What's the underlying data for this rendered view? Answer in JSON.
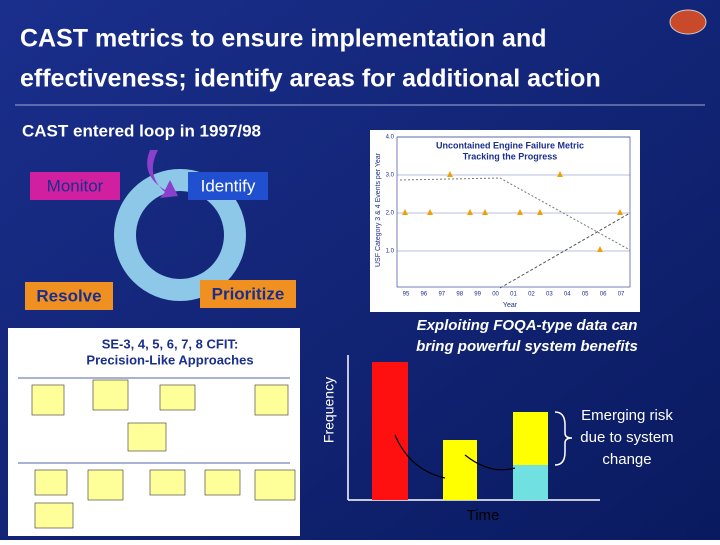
{
  "header": {
    "title_line_1": "CAST metrics to ensure implementation and",
    "title_line_2": "effectiveness; identify areas for additional action"
  },
  "subtitle": "CAST entered loop in 1997/98",
  "cycle": {
    "monitor": "Monitor",
    "identify": "Identify",
    "resolve": "Resolve",
    "prioritize": "Prioritize"
  },
  "metric_chart": {
    "title": "Uncontained Engine Failure Metric",
    "subtitle": "Tracking the Progress",
    "y_label": "USF Category 3 & 4 Events per Year",
    "x_label": "Year",
    "y_ticks": [
      "4.0",
      "3.0",
      "2.0",
      "1.0"
    ],
    "x_ticks": [
      "95",
      "96",
      "97",
      "98",
      "99",
      "00",
      "01",
      "02",
      "03",
      "04",
      "05",
      "06",
      "07"
    ]
  },
  "flow_chart": {
    "title_line_1": "SE-3, 4, 5, 6, 7, 8    CFIT:",
    "title_line_2": "Precision-Like Approaches"
  },
  "foqa": {
    "caption_line_1": "Exploiting FOQA-type data can",
    "caption_line_2": "bring powerful system benefits",
    "y_label": "Frequency",
    "x_label": "Time",
    "note_line_1": "Emerging risk",
    "note_line_2": "due to system",
    "note_line_3": "change"
  }
}
